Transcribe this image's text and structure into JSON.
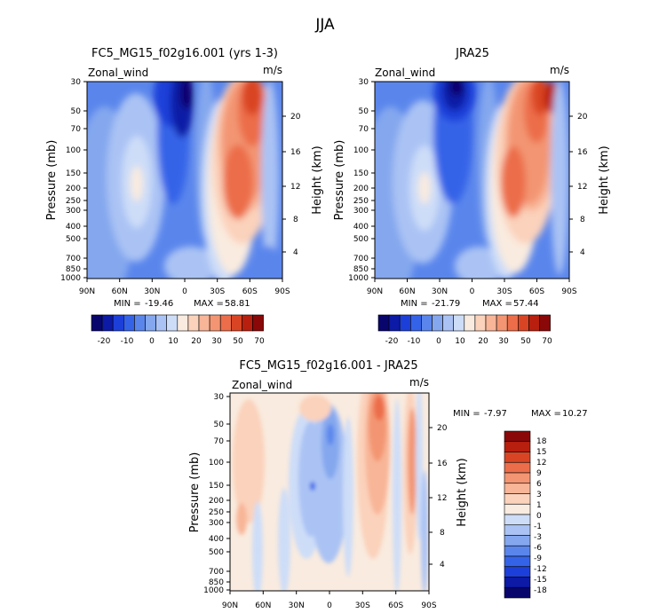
{
  "title": "JJA",
  "chart_data": [
    {
      "type": "heatmap",
      "id": "model",
      "title": "FC5_MG15_f02g16.001 (yrs 1-3)",
      "variable": "Zonal_wind",
      "units": "m/s",
      "ylabel": "Pressure (mb)",
      "ylabel_right": "Height (km)",
      "x_ticks": [
        "90N",
        "60N",
        "30N",
        "0",
        "30S",
        "60S",
        "90S"
      ],
      "y_ticks": [
        "30",
        "50",
        "70",
        "100",
        "150",
        "200",
        "250",
        "300",
        "400",
        "500",
        "700",
        "850",
        "1000"
      ],
      "height_ticks": [
        "20",
        "16",
        "12",
        "8",
        "4"
      ],
      "min_label": "MIN =",
      "min": "-19.46",
      "max_label": "MAX =",
      "max": "58.81",
      "colorbar_levels": [
        "-20",
        "-10",
        "0",
        "10",
        "20",
        "30",
        "50",
        "70"
      ]
    },
    {
      "type": "heatmap",
      "id": "obs",
      "title": "JRA25",
      "variable": "Zonal_wind",
      "units": "m/s",
      "ylabel": "Pressure (mb)",
      "ylabel_right": "Height (km)",
      "x_ticks": [
        "90N",
        "60N",
        "30N",
        "0",
        "30S",
        "60S",
        "90S"
      ],
      "y_ticks": [
        "30",
        "50",
        "70",
        "100",
        "150",
        "200",
        "250",
        "300",
        "400",
        "500",
        "700",
        "850",
        "1000"
      ],
      "height_ticks": [
        "20",
        "16",
        "12",
        "8",
        "4"
      ],
      "min_label": "MIN =",
      "min": "-21.79",
      "max_label": "MAX =",
      "max": "57.44",
      "colorbar_levels": [
        "-20",
        "-10",
        "0",
        "10",
        "20",
        "30",
        "50",
        "70"
      ]
    },
    {
      "type": "heatmap",
      "id": "diff",
      "title": "FC5_MG15_f02g16.001 - JRA25",
      "variable": "Zonal_wind",
      "units": "m/s",
      "ylabel": "Pressure (mb)",
      "ylabel_right": "Height (km)",
      "x_ticks": [
        "90N",
        "60N",
        "30N",
        "0",
        "30S",
        "60S",
        "90S"
      ],
      "y_ticks": [
        "30",
        "50",
        "70",
        "100",
        "150",
        "200",
        "250",
        "300",
        "400",
        "500",
        "700",
        "850",
        "1000"
      ],
      "height_ticks": [
        "20",
        "16",
        "12",
        "8",
        "4"
      ],
      "min_label": "MIN =",
      "min": "-7.97",
      "max_label": "MAX =",
      "max": "10.27",
      "colorbar_levels": [
        "18",
        "15",
        "12",
        "9",
        "6",
        "3",
        "1",
        "0",
        "-1",
        "-3",
        "-6",
        "-9",
        "-12",
        "-15",
        "-18"
      ]
    }
  ],
  "colors": {
    "wind_scale": [
      "#08066d",
      "#0c1aa6",
      "#1d3fd9",
      "#3563e8",
      "#5a86ec",
      "#84a7ee",
      "#aac3f4",
      "#cdddf8",
      "#f9ebdf",
      "#fbd2bb",
      "#f8b597",
      "#f39572",
      "#ec6d4a",
      "#d94524",
      "#b81f0e",
      "#8a0808"
    ],
    "diff_scale": [
      "#8a0808",
      "#b81f0e",
      "#d94524",
      "#ec6d4a",
      "#f39572",
      "#f8b597",
      "#fbd2bb",
      "#f9ebdf",
      "#cdddf8",
      "#aac3f4",
      "#84a7ee",
      "#5a86ec",
      "#3563e8",
      "#1d3fd9",
      "#0c1aa6",
      "#08066d"
    ]
  }
}
